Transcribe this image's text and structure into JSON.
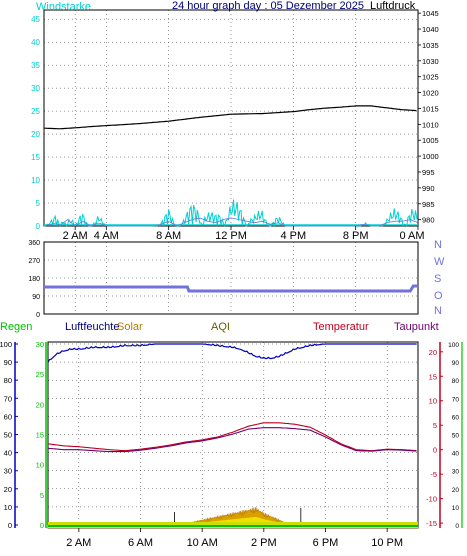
{
  "colors": {
    "wind": "#00d0d0",
    "pressure": "#000000",
    "gust": "#00a8d0",
    "direction": "#7272dd",
    "humidity": "#0000c0",
    "temperature": "#c00020",
    "dewpoint": "#700070",
    "rain": "#00c000",
    "solar": "#d8a000",
    "aqi": "#606000",
    "grid": "#000000"
  },
  "top": {
    "title": "24 hour graph day : 05 Dezember 2025",
    "left_label": "Windstarke",
    "right_label": "Luftdruck",
    "wind_ticks": [
      "0",
      "5",
      "10",
      "15",
      "20",
      "25",
      "30",
      "35",
      "40",
      "45"
    ],
    "pressure_ticks": [
      "980",
      "985",
      "990",
      "995",
      "1000",
      "1005",
      "1010",
      "1015",
      "1020",
      "1025",
      "1030",
      "1035",
      "1040",
      "1045"
    ],
    "x_ticks": [
      "2 AM",
      "4 AM",
      "8 AM",
      "12 PM",
      "4 PM",
      "8 PM",
      "0 AM"
    ]
  },
  "mid": {
    "deg_ticks": [
      "0",
      "90",
      "180",
      "270",
      "360"
    ],
    "compass": [
      "N",
      "W",
      "S",
      "O",
      "N"
    ]
  },
  "bottom": {
    "labels": {
      "regen": "Regen",
      "luftfeuchte": "Luftfeuchte",
      "solar": "Solar",
      "aqi": "AQI",
      "temperatur": "Temperatur",
      "taupunkt": "Taupunkt"
    },
    "humidity_ticks": [
      "0",
      "10",
      "20",
      "30",
      "40",
      "50",
      "60",
      "70",
      "80",
      "90",
      "100"
    ],
    "rain_ticks": [
      "0",
      "5",
      "10",
      "15",
      "20",
      "25",
      "30"
    ],
    "temp_ticks": [
      "-15",
      "-10",
      "-5",
      "0",
      "5",
      "10",
      "15",
      "20"
    ],
    "solar_ticks": [
      "0",
      "10",
      "20",
      "30",
      "40",
      "50",
      "60",
      "70",
      "80",
      "90",
      "100"
    ],
    "x_ticks": [
      "2 AM",
      "6 AM",
      "10 AM",
      "2 PM",
      "6 PM",
      "10 PM"
    ]
  },
  "chart_data": [
    {
      "type": "line",
      "title": "24 hour graph day : 05 Dezember 2025",
      "x_unit": "hour",
      "series": [
        {
          "name": "Windstarke",
          "axis": "left",
          "ylim": [
            0,
            47
          ],
          "x": [
            0,
            0.8,
            1,
            1.5,
            2,
            2.5,
            3,
            3.5,
            4,
            5,
            6,
            7,
            7.5,
            8,
            8.5,
            9,
            9.5,
            10,
            10.5,
            11,
            11.5,
            12,
            12.5,
            13,
            13.5,
            14,
            14.5,
            15,
            15.5,
            16,
            17,
            18,
            19,
            20,
            20.5,
            21,
            21.5,
            22,
            22.5,
            23,
            23.5,
            24
          ],
          "y": [
            0,
            2,
            0,
            4,
            0,
            3,
            0,
            2,
            0,
            0,
            0,
            0,
            1,
            3,
            0,
            2,
            4,
            5,
            3,
            2,
            4,
            5,
            4,
            3,
            2,
            3,
            1,
            2,
            0,
            0,
            0,
            0,
            0,
            0,
            1,
            0,
            0,
            2,
            3,
            3,
            4,
            2
          ]
        },
        {
          "name": "Luftdruck",
          "axis": "right",
          "ylim": [
            978,
            1046
          ],
          "x": [
            0,
            1,
            2,
            3,
            4,
            5,
            6,
            7,
            8,
            9,
            10,
            11,
            12,
            13,
            14,
            15,
            16,
            17,
            18,
            19,
            20,
            21,
            22,
            23,
            24
          ],
          "y": [
            1008.8,
            1008.6,
            1008.9,
            1009.3,
            1009.6,
            1009.9,
            1010.2,
            1010.6,
            1011.0,
            1011.6,
            1012.2,
            1012.7,
            1013.2,
            1013.3,
            1013.4,
            1013.7,
            1014.0,
            1014.6,
            1015.1,
            1015.4,
            1015.8,
            1015.8,
            1015.2,
            1014.6,
            1014.3
          ]
        }
      ]
    },
    {
      "type": "line",
      "ylim": [
        0,
        360
      ],
      "series": [
        {
          "name": "Windrichtung",
          "x": [
            0,
            9.2,
            9.3,
            23.5,
            23.7,
            24
          ],
          "y": [
            135,
            135,
            115,
            115,
            140,
            140
          ]
        }
      ]
    },
    {
      "type": "line",
      "x_unit": "hour",
      "series": [
        {
          "name": "Luftfeuchte",
          "axis": "humidity",
          "ylim": [
            0,
            100
          ],
          "x": [
            0,
            0.5,
            1,
            1.5,
            2,
            3,
            4,
            5,
            6,
            7,
            8,
            9,
            10,
            11,
            12,
            12.5,
            13,
            13.5,
            14,
            14.5,
            15,
            15.5,
            16,
            17,
            18,
            19,
            20,
            21,
            22,
            23,
            24
          ],
          "y": [
            90,
            94,
            96,
            97,
            97,
            98,
            98,
            99,
            99,
            100,
            100,
            100,
            100,
            99,
            98,
            97,
            95,
            93,
            92,
            92,
            93,
            95,
            97,
            99,
            100,
            100,
            100,
            100,
            100,
            100,
            100
          ]
        },
        {
          "name": "Temperatur",
          "axis": "temperature",
          "ylim": [
            -16,
            22
          ],
          "x": [
            0,
            1,
            2,
            3,
            4,
            5,
            6,
            7,
            8,
            9,
            10,
            11,
            12,
            13,
            14,
            15,
            16,
            17,
            18,
            19,
            20,
            21,
            22,
            23,
            24
          ],
          "y": [
            1.2,
            0.8,
            0.6,
            0.3,
            0.0,
            -0.2,
            0.1,
            0.5,
            1.0,
            1.6,
            2.0,
            2.6,
            3.6,
            4.8,
            5.5,
            5.5,
            5.2,
            4.6,
            3.0,
            1.2,
            0.0,
            -0.2,
            0.1,
            0.0,
            -0.2
          ]
        },
        {
          "name": "Taupunkt",
          "axis": "temperature",
          "ylim": [
            -16,
            22
          ],
          "x": [
            0,
            1,
            2,
            3,
            4,
            5,
            6,
            7,
            8,
            9,
            10,
            11,
            12,
            13,
            14,
            15,
            16,
            17,
            18,
            19,
            20,
            21,
            22,
            23,
            24
          ],
          "y": [
            0.3,
            0.0,
            0.0,
            -0.2,
            -0.4,
            -0.4,
            -0.1,
            0.3,
            0.8,
            1.4,
            1.8,
            2.4,
            3.2,
            4.2,
            4.5,
            4.5,
            4.3,
            4.0,
            2.6,
            1.0,
            -0.2,
            -0.3,
            0.0,
            -0.1,
            -0.3
          ]
        },
        {
          "name": "Solar",
          "axis": "solar",
          "ylim": [
            0,
            100
          ],
          "x": [
            0,
            8.5,
            9,
            9.5,
            10,
            10.5,
            11,
            11.5,
            12,
            12.5,
            13,
            13.5,
            14,
            14.5,
            15,
            15.5,
            16,
            24
          ],
          "y": [
            0,
            0,
            1,
            2,
            3,
            4,
            5,
            6,
            7,
            8,
            9,
            10,
            7,
            5,
            3,
            1,
            0,
            0
          ]
        },
        {
          "name": "Regen",
          "axis": "rain",
          "ylim": [
            0,
            30
          ],
          "x": [
            0,
            24
          ],
          "y": [
            0.2,
            0.2
          ]
        }
      ]
    }
  ]
}
